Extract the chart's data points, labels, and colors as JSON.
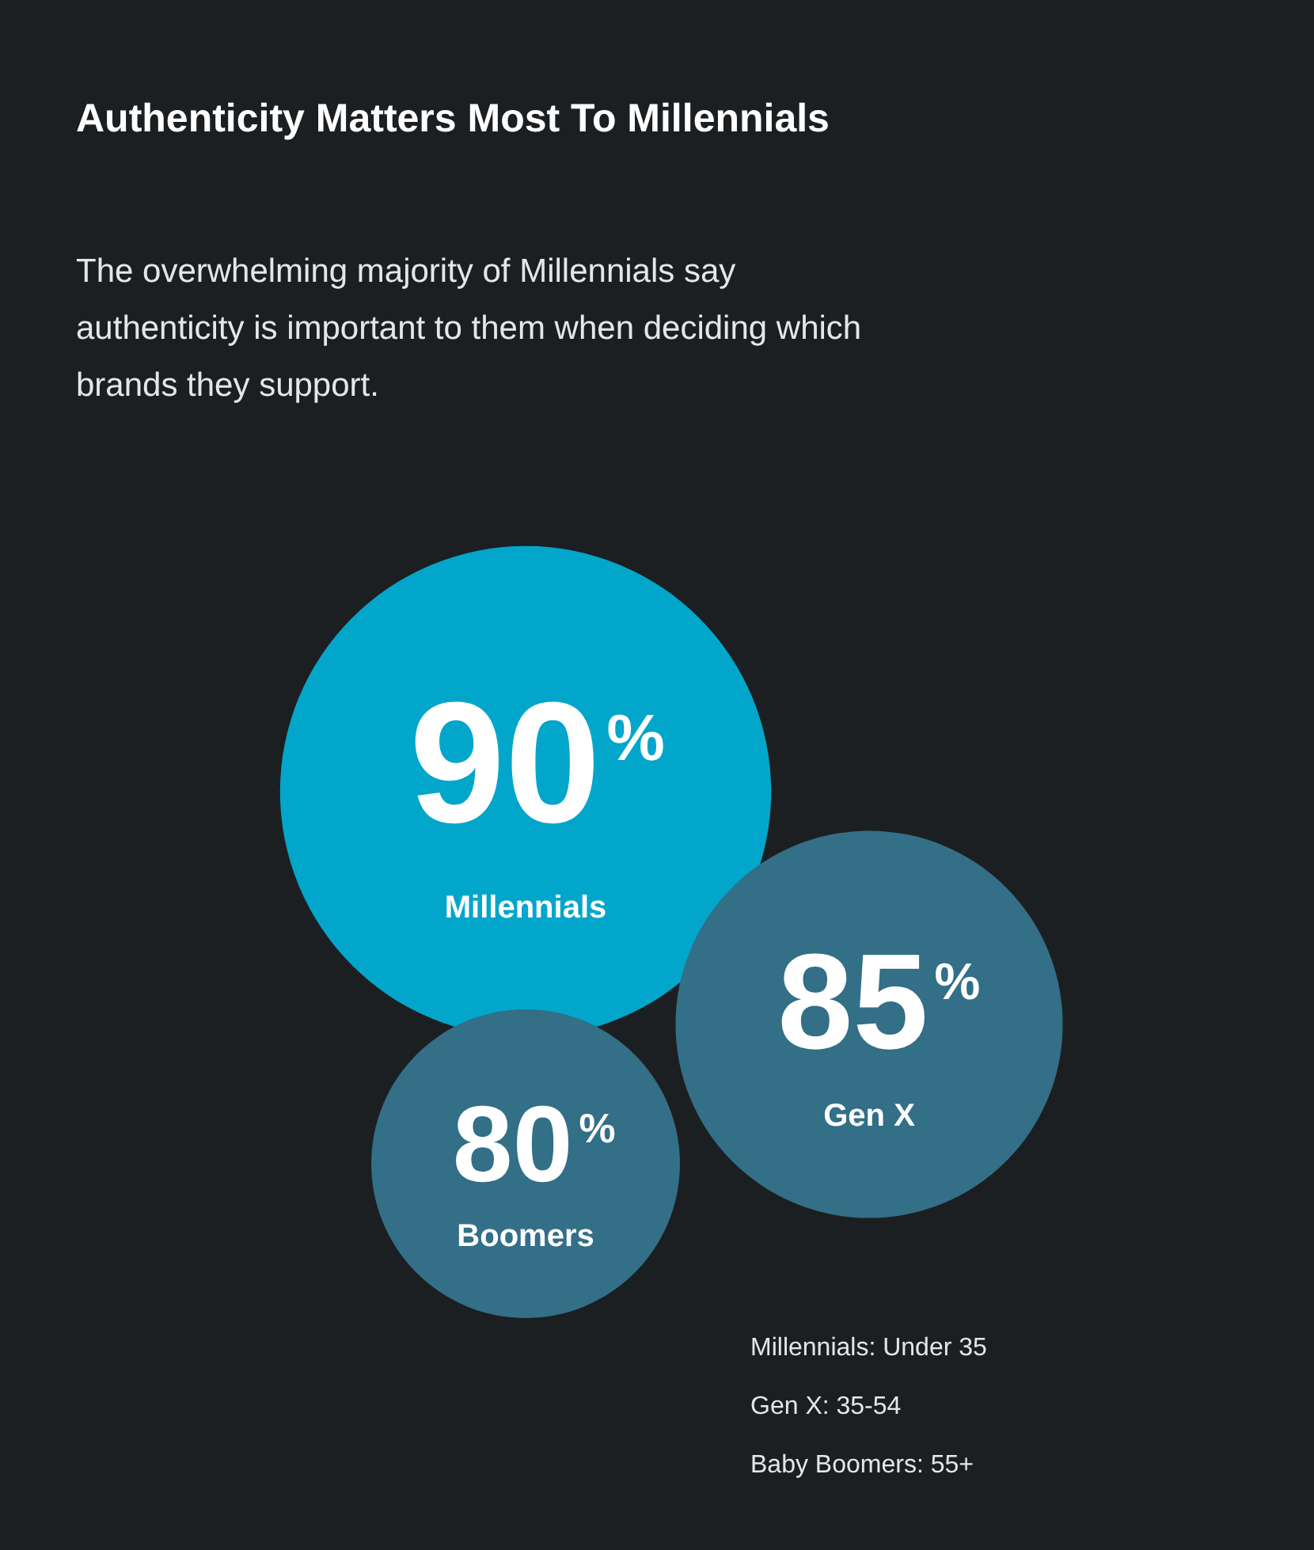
{
  "chart_data": {
    "type": "other",
    "title": "Authenticity Matters Most To Millennials",
    "subtitle": "The overwhelming majority of Millennials say authenticity is important to them when deciding which brands they support.",
    "categories": [
      "Millennials",
      "Gen X",
      "Boomers"
    ],
    "values": [
      90,
      85,
      80
    ],
    "value_labels": [
      "90%",
      "85%",
      "80%"
    ],
    "colors": [
      "#03a6cb",
      "#336f87",
      "#336f87"
    ],
    "annotations": [
      "Millennials: Under 35",
      "Gen X: 35-54",
      "Baby Boomers: 55+"
    ]
  }
}
